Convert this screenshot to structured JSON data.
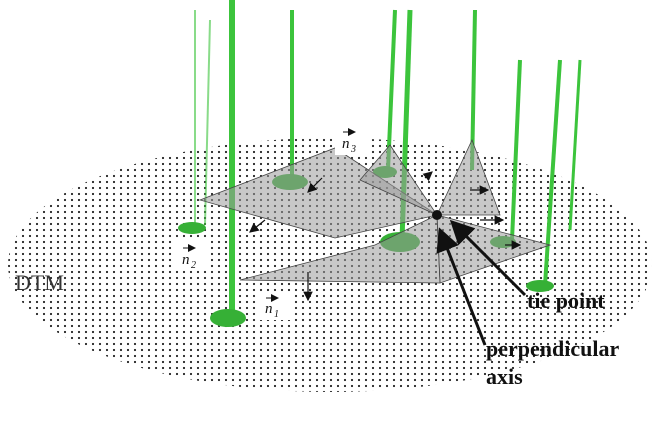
{
  "labels": {
    "dtm": "DTM",
    "tie_point": "tie point",
    "perpendicular_axis": [
      "perpendicular",
      "axis"
    ]
  },
  "normals": [
    {
      "symbol": "n",
      "subscript": "1"
    },
    {
      "symbol": "n",
      "subscript": "2"
    },
    {
      "symbol": "n",
      "subscript": "3"
    }
  ]
}
